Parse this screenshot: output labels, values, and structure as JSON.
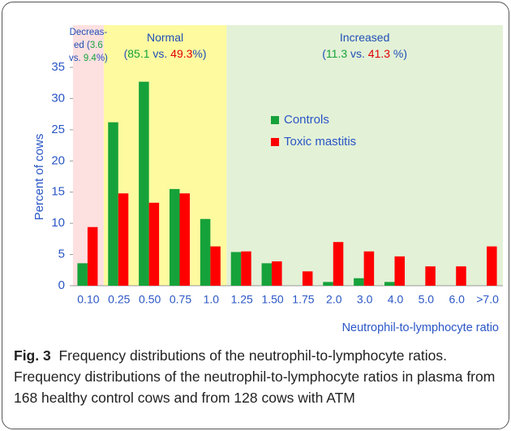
{
  "chart_data": {
    "type": "bar",
    "regions": [
      {
        "lines": [
          [
            "Decreas-"
          ],
          [
            "ed (",
            "3.6",
            ""
          ],
          [
            "vs. ",
            "9.4",
            "%)"
          ]
        ]
      },
      {
        "lines": [
          [
            "Normal"
          ],
          [
            "(",
            "85.1",
            " vs. ",
            "49.3",
            "%)"
          ]
        ]
      },
      {
        "lines": [
          [
            "Increased"
          ],
          [
            "(",
            "11.3",
            " vs. ",
            "41.3",
            " %)"
          ]
        ]
      }
    ],
    "y_label": "Percent of cows",
    "x_label": "Neutrophil-to-lymphocyte ratio",
    "categories": [
      "0.10",
      "0.25",
      "0.50",
      "0.75",
      "1.0",
      "1.25",
      "1.50",
      "1.75",
      "2.0",
      "3.0",
      "4.0",
      "5.0",
      "6.0",
      ">7.0"
    ],
    "series": [
      {
        "name": "Controls",
        "color": "#16a23a",
        "values": [
          3.6,
          26.2,
          32.7,
          15.5,
          10.7,
          5.4,
          3.6,
          0,
          0.6,
          1.2,
          0.6,
          0,
          0,
          0
        ]
      },
      {
        "name": "Toxic mastitis",
        "color": "#ff0000",
        "values": [
          9.4,
          14.8,
          13.3,
          14.8,
          6.3,
          5.5,
          3.9,
          2.3,
          7.0,
          5.5,
          4.7,
          3.1,
          3.1,
          6.3
        ]
      }
    ],
    "ylim": [
      0,
      35
    ],
    "yticks": [
      0,
      5,
      10,
      15,
      20,
      25,
      30,
      35
    ]
  },
  "caption": {
    "label": "Fig. 3",
    "text": "Frequency distributions of the neutrophil-to-lymphocyte ratios. Frequency distributions of the neutrophil-to-lymphocyte ratios in plasma from 168 healthy control cows and from 128 cows with ATM"
  }
}
